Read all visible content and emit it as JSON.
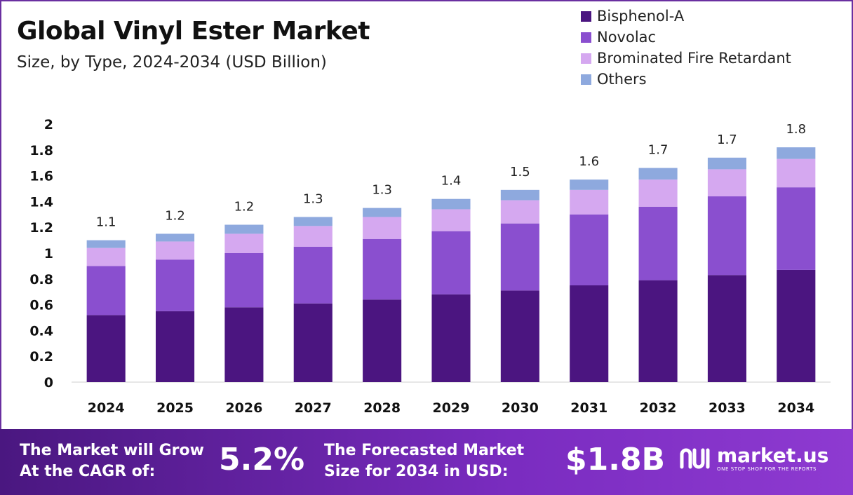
{
  "header": {
    "title": "Global Vinyl Ester Market",
    "subtitle": "Size, by Type, 2024-2034 (USD Billion)"
  },
  "legend": [
    {
      "label": "Bisphenol-A",
      "color": "#4b1580"
    },
    {
      "label": "Novolac",
      "color": "#8a4fcf"
    },
    {
      "label": "Brominated Fire Retardant",
      "color": "#d5a8f0"
    },
    {
      "label": "Others",
      "color": "#8ea9de"
    }
  ],
  "chart_data": {
    "type": "bar",
    "stacked": true,
    "categories": [
      "2024",
      "2025",
      "2026",
      "2027",
      "2028",
      "2029",
      "2030",
      "2031",
      "2032",
      "2033",
      "2034"
    ],
    "series": [
      {
        "name": "Bisphenol-A",
        "color": "#4b1580",
        "values": [
          0.52,
          0.55,
          0.58,
          0.61,
          0.64,
          0.68,
          0.71,
          0.75,
          0.79,
          0.83,
          0.87
        ]
      },
      {
        "name": "Novolac",
        "color": "#8a4fcf",
        "values": [
          0.38,
          0.4,
          0.42,
          0.44,
          0.47,
          0.49,
          0.52,
          0.55,
          0.57,
          0.61,
          0.64
        ]
      },
      {
        "name": "Brominated Fire Retardant",
        "color": "#d5a8f0",
        "values": [
          0.14,
          0.14,
          0.15,
          0.16,
          0.17,
          0.17,
          0.18,
          0.19,
          0.21,
          0.21,
          0.22
        ]
      },
      {
        "name": "Others",
        "color": "#8ea9de",
        "values": [
          0.06,
          0.06,
          0.07,
          0.07,
          0.07,
          0.08,
          0.08,
          0.08,
          0.09,
          0.09,
          0.09
        ]
      }
    ],
    "totals": [
      "1.1",
      "1.2",
      "1.2",
      "1.3",
      "1.3",
      "1.4",
      "1.5",
      "1.6",
      "1.7",
      "1.7",
      "1.8"
    ],
    "ylim": [
      0,
      2
    ],
    "yticks": [
      "0",
      "0.2",
      "0.4",
      "0.6",
      "0.8",
      "1",
      "1.2",
      "1.4",
      "1.6",
      "1.8",
      "2"
    ],
    "grid": false,
    "legend_position": "top-right"
  },
  "banner": {
    "cagr_line1": "The Market will Grow",
    "cagr_line2": "At the CAGR of:",
    "cagr_value": "5.2%",
    "forecast_line1": "The Forecasted Market",
    "forecast_line2": "Size for 2034 in USD:",
    "forecast_value": "$1.8B",
    "logo_name": "market.us",
    "logo_tagline": "ONE STOP SHOP FOR THE REPORTS"
  }
}
